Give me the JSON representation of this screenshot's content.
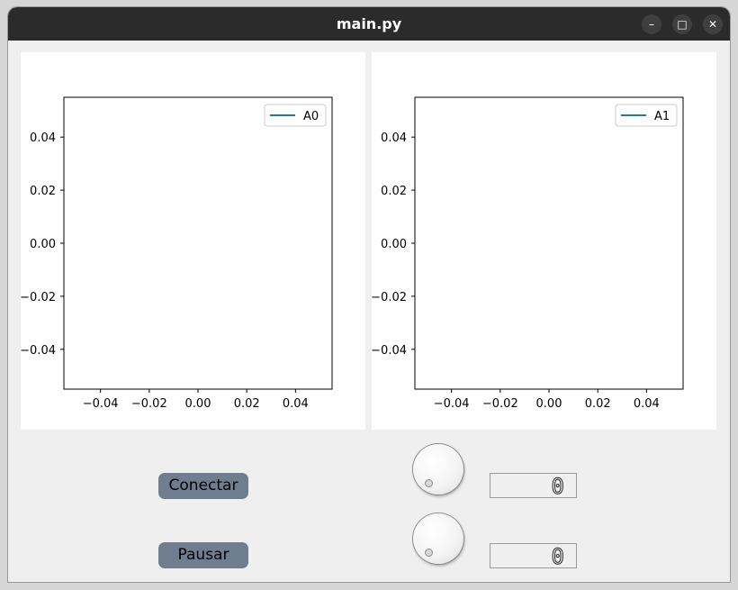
{
  "window": {
    "title": "main.py",
    "minimize_glyph": "–",
    "maximize_glyph": "□",
    "close_glyph": "✕"
  },
  "controls": {
    "connect_label": "Conectar",
    "pause_label": "Pausar",
    "display1_value": "0",
    "display2_value": "0"
  },
  "chart_data": [
    {
      "type": "line",
      "series": [
        {
          "name": "A0",
          "color": "#1f77b4",
          "x": [],
          "y": []
        }
      ],
      "xlim": [
        -0.055,
        0.055
      ],
      "ylim": [
        -0.055,
        0.055
      ],
      "xticks": [
        "−0.04",
        "−0.02",
        "0.00",
        "0.02",
        "0.04"
      ],
      "yticks": [
        "0.04",
        "0.02",
        "0.00",
        "−0.02",
        "−0.04"
      ],
      "xtick_values": [
        -0.04,
        -0.02,
        0.0,
        0.02,
        0.04
      ],
      "ytick_values": [
        0.04,
        0.02,
        0.0,
        -0.02,
        -0.04
      ],
      "legend": "top-right",
      "grid": false
    },
    {
      "type": "line",
      "series": [
        {
          "name": "A1",
          "color": "#1f77b4",
          "x": [],
          "y": []
        }
      ],
      "xlim": [
        -0.055,
        0.055
      ],
      "ylim": [
        -0.055,
        0.055
      ],
      "xticks": [
        "−0.04",
        "−0.02",
        "0.00",
        "0.02",
        "0.04"
      ],
      "yticks": [
        "0.04",
        "0.02",
        "0.00",
        "−0.02",
        "−0.04"
      ],
      "xtick_values": [
        -0.04,
        -0.02,
        0.0,
        0.02,
        0.04
      ],
      "ytick_values": [
        0.04,
        0.02,
        0.0,
        -0.02,
        -0.04
      ],
      "legend": "top-right",
      "grid": false
    }
  ]
}
